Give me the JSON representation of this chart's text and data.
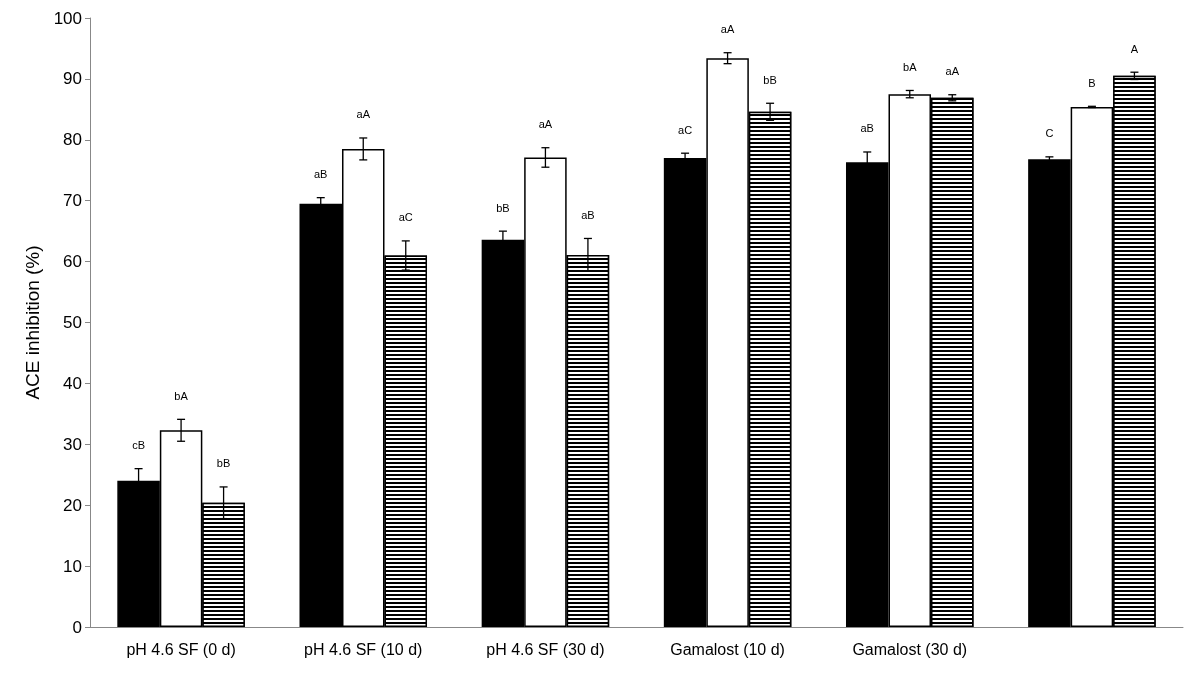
{
  "chart_data": {
    "type": "bar",
    "ylabel": "ACE inhibition (%)",
    "categories": [
      "pH 4.6 SF (0 d)",
      "pH 4.6 SF (10 d)",
      "pH 4.6 SF (30 d)",
      "Gamalost (10 d)",
      "Gamalost (30 d)",
      null
    ],
    "series": [
      {
        "color": "#000000",
        "values": [
          24,
          69.5,
          63.6,
          77,
          76.3,
          76.8
        ],
        "errors": [
          2,
          1,
          1.4,
          0.8,
          1.7,
          0.4
        ],
        "value_labels": [
          "cB",
          "aB",
          "bB",
          "aC",
          "aB",
          "C"
        ]
      },
      {
        "color": "#ffffff",
        "values": [
          32.3,
          78.5,
          77.1,
          93.4,
          87.5,
          85.4
        ],
        "errors": [
          1.8,
          1.8,
          1.6,
          0.9,
          0.6,
          0.1
        ],
        "value_labels": [
          "bA",
          "aA",
          "aA",
          "aA",
          "bA",
          "B"
        ]
      },
      {
        "color": "#000000",
        "values": [
          20.4,
          61,
          61.1,
          84.6,
          86.9,
          90.5
        ],
        "errors": [
          2.6,
          2.4,
          2.7,
          1.4,
          0.5,
          0.6
        ],
        "value_labels": [
          "bB",
          "aC",
          "aB",
          "bB",
          "aA",
          "A"
        ]
      }
    ],
    "ylim": [
      0,
      100
    ],
    "yticks": [
      0,
      10,
      20,
      30,
      40,
      50,
      60,
      70,
      80,
      90,
      100
    ],
    "grid": false
  }
}
